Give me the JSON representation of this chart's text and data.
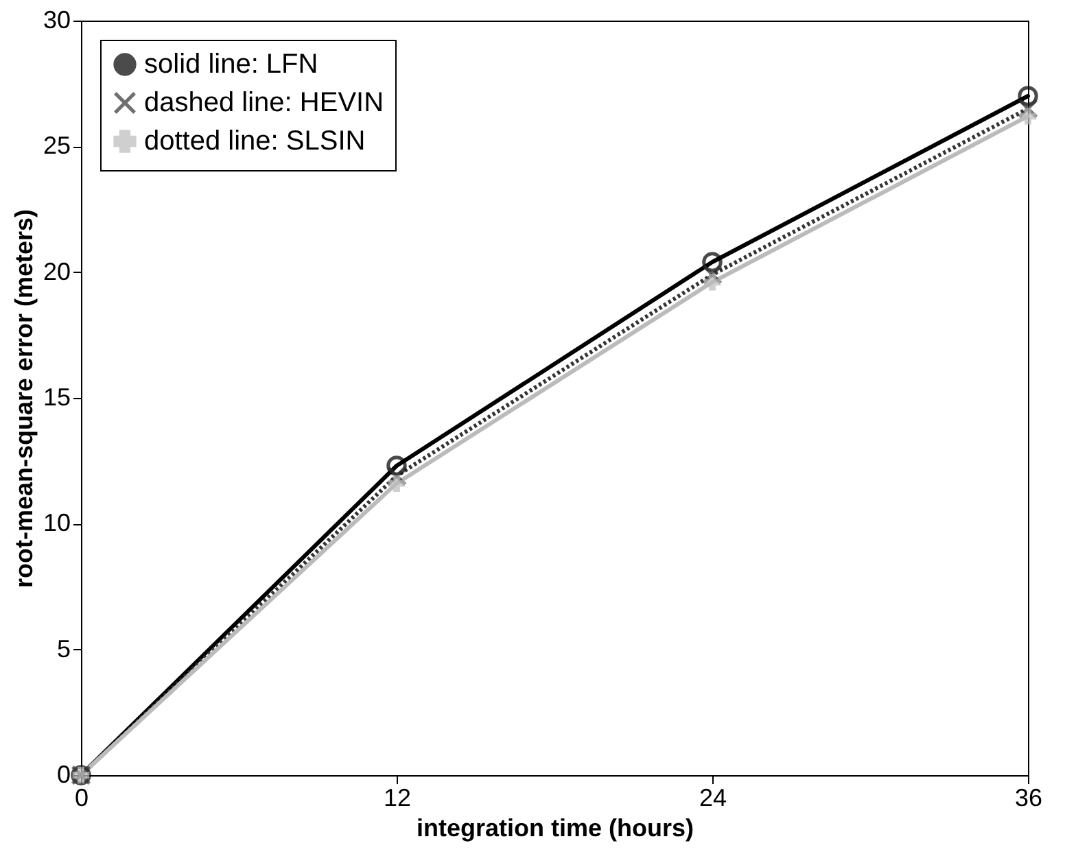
{
  "chart_data": {
    "type": "line",
    "xlabel": "integration time (hours)",
    "ylabel": "root-mean-square error (meters)",
    "x": [
      0,
      12,
      24,
      36
    ],
    "series": [
      {
        "name": "solid line: LFN",
        "color": "#000000",
        "values": [
          0,
          12.3,
          20.4,
          27.0
        ],
        "marker": "circle",
        "line_style": "solid"
      },
      {
        "name": "dashed line: HEVIN",
        "color": "#333333",
        "values": [
          0,
          11.9,
          19.9,
          26.5
        ],
        "marker": "cross",
        "line_style": "dotted"
      },
      {
        "name": "dotted line: SLSIN",
        "color": "#bbbbbb",
        "values": [
          0,
          11.6,
          19.6,
          26.2
        ],
        "marker": "plus",
        "line_style": "solid"
      }
    ],
    "xlim": [
      0,
      36
    ],
    "xticks": [
      0,
      12,
      24,
      36
    ],
    "ylim": [
      0,
      30
    ],
    "yticks": [
      0,
      5,
      10,
      15,
      20,
      25,
      30
    ],
    "grid": false,
    "legend": "top left"
  }
}
